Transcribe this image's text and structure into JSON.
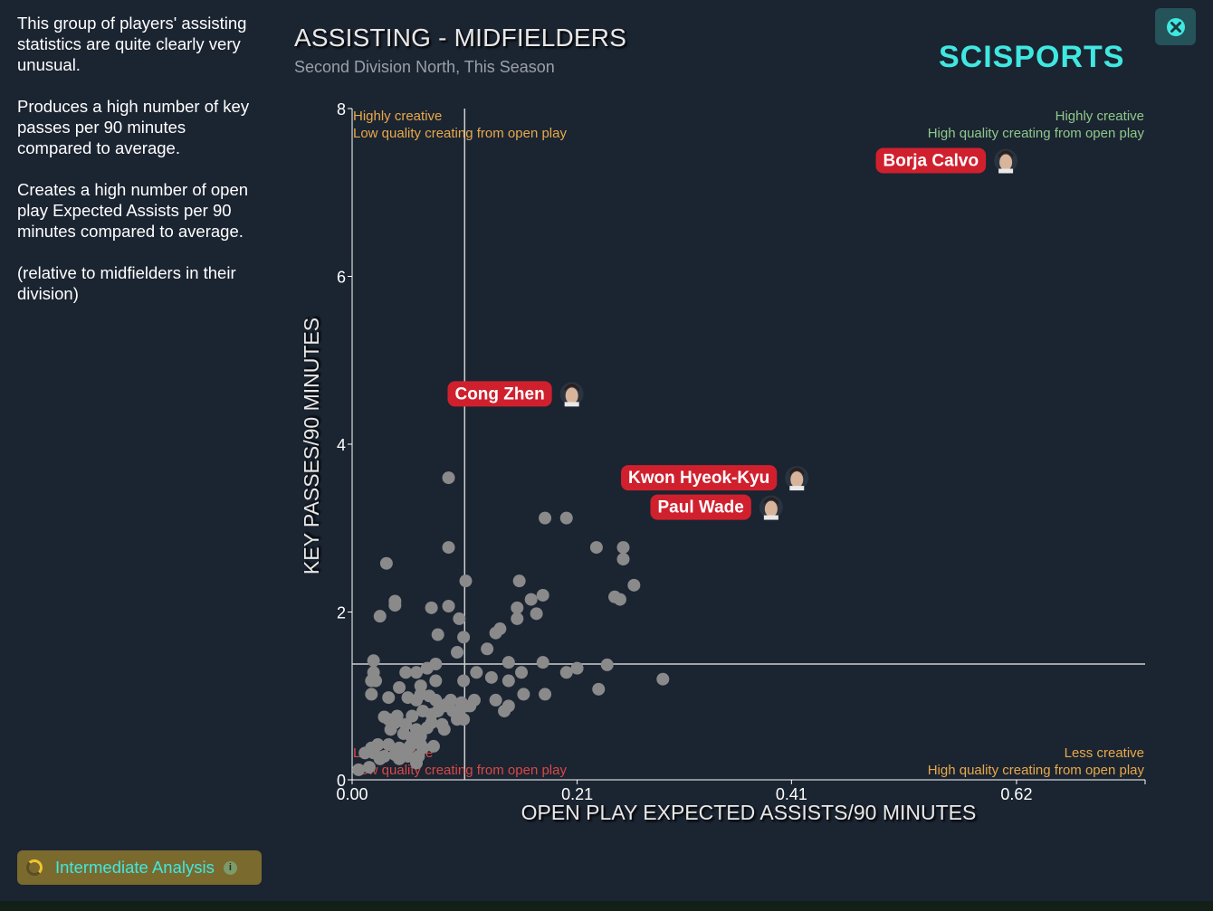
{
  "sidebar": {
    "paragraphs": [
      "This group of players' assisting statistics are quite clearly very unusual.",
      "Produces a high number of key passes per 90 minutes compared to average.",
      "Creates a high number of open play Expected Assists per 90 minutes compared to average.",
      "(relative to midfielders in their division)"
    ],
    "analysis_button": "Intermediate Analysis"
  },
  "header": {
    "brand": "SCISPORTS",
    "close_icon": "close-icon"
  },
  "colors": {
    "background": "#1b2431",
    "accent": "#3fe8e0",
    "highlight_label": "#d0202e",
    "point": "#8a8a8a",
    "quadrant_green": "#8fc98a",
    "quadrant_orange": "#e8a94a",
    "quadrant_red": "#d94848"
  },
  "chart_data": {
    "type": "scatter",
    "title": "ASSISTING - MIDFIELDERS",
    "subtitle": "Second Division North, This Season",
    "xlabel": "OPEN PLAY EXPECTED ASSISTS/90 MINUTES",
    "ylabel": "KEY PASSES/90 MINUTES",
    "xlim": [
      0,
      0.74
    ],
    "ylim": [
      0,
      8
    ],
    "xticks": [
      0.0,
      0.21,
      0.41,
      0.62
    ],
    "xtick_labels": [
      "0.00",
      "0.21",
      "0.41",
      "0.62"
    ],
    "yticks": [
      0,
      2,
      4,
      6,
      8
    ],
    "reference_lines": {
      "x": 0.105,
      "y": 1.38
    },
    "quadrant_labels": {
      "top_left": [
        "Highly creative",
        "Low quality creating from open play"
      ],
      "top_right": [
        "Highly creative",
        "High quality creating from open play"
      ],
      "bottom_left": [
        "Less creative",
        "Low quality creating from open play"
      ],
      "bottom_right": [
        "Less creative",
        "High quality creating from open play"
      ]
    },
    "highlighted": [
      {
        "name": "Borja Calvo",
        "x": 0.61,
        "y": 7.38
      },
      {
        "name": "Cong Zhen",
        "x": 0.205,
        "y": 4.6
      },
      {
        "name": "Kwon Hyeok-Kyu",
        "x": 0.415,
        "y": 3.6
      },
      {
        "name": "Paul Wade",
        "x": 0.391,
        "y": 3.25
      }
    ],
    "points": [
      [
        0.09,
        3.6
      ],
      [
        0.2,
        3.12
      ],
      [
        0.18,
        3.12
      ],
      [
        0.228,
        2.77
      ],
      [
        0.253,
        2.77
      ],
      [
        0.253,
        2.63
      ],
      [
        0.09,
        2.77
      ],
      [
        0.032,
        2.58
      ],
      [
        0.106,
        2.37
      ],
      [
        0.156,
        2.37
      ],
      [
        0.263,
        2.32
      ],
      [
        0.04,
        2.13
      ],
      [
        0.04,
        2.08
      ],
      [
        0.074,
        2.05
      ],
      [
        0.09,
        2.07
      ],
      [
        0.178,
        2.2
      ],
      [
        0.167,
        2.15
      ],
      [
        0.245,
        2.18
      ],
      [
        0.25,
        2.15
      ],
      [
        0.154,
        2.05
      ],
      [
        0.172,
        1.98
      ],
      [
        0.026,
        1.95
      ],
      [
        0.1,
        1.92
      ],
      [
        0.154,
        1.92
      ],
      [
        0.134,
        1.75
      ],
      [
        0.138,
        1.8
      ],
      [
        0.08,
        1.73
      ],
      [
        0.104,
        1.7
      ],
      [
        0.126,
        1.56
      ],
      [
        0.098,
        1.52
      ],
      [
        0.02,
        1.42
      ],
      [
        0.146,
        1.4
      ],
      [
        0.178,
        1.4
      ],
      [
        0.238,
        1.37
      ],
      [
        0.2,
        1.28
      ],
      [
        0.21,
        1.33
      ],
      [
        0.078,
        1.38
      ],
      [
        0.07,
        1.33
      ],
      [
        0.06,
        1.28
      ],
      [
        0.05,
        1.28
      ],
      [
        0.02,
        1.28
      ],
      [
        0.022,
        1.18
      ],
      [
        0.116,
        1.28
      ],
      [
        0.13,
        1.22
      ],
      [
        0.146,
        1.18
      ],
      [
        0.158,
        1.28
      ],
      [
        0.104,
        1.18
      ],
      [
        0.078,
        1.18
      ],
      [
        0.064,
        1.12
      ],
      [
        0.044,
        1.1
      ],
      [
        0.018,
        1.18
      ],
      [
        0.29,
        1.2
      ],
      [
        0.23,
        1.08
      ],
      [
        0.16,
        1.02
      ],
      [
        0.18,
        1.02
      ],
      [
        0.034,
        0.98
      ],
      [
        0.018,
        1.02
      ],
      [
        0.052,
        0.98
      ],
      [
        0.06,
        0.95
      ],
      [
        0.064,
        1.02
      ],
      [
        0.072,
        1.0
      ],
      [
        0.078,
        0.95
      ],
      [
        0.088,
        0.9
      ],
      [
        0.092,
        0.95
      ],
      [
        0.102,
        0.92
      ],
      [
        0.106,
        0.88
      ],
      [
        0.134,
        0.95
      ],
      [
        0.146,
        0.88
      ],
      [
        0.142,
        0.82
      ],
      [
        0.1,
        0.82
      ],
      [
        0.094,
        0.82
      ],
      [
        0.086,
        0.88
      ],
      [
        0.08,
        0.82
      ],
      [
        0.074,
        0.78
      ],
      [
        0.066,
        0.82
      ],
      [
        0.056,
        0.76
      ],
      [
        0.042,
        0.76
      ],
      [
        0.034,
        0.72
      ],
      [
        0.03,
        0.75
      ],
      [
        0.04,
        0.68
      ],
      [
        0.05,
        0.66
      ],
      [
        0.06,
        0.6
      ],
      [
        0.07,
        0.62
      ],
      [
        0.074,
        0.68
      ],
      [
        0.084,
        0.66
      ],
      [
        0.098,
        0.72
      ],
      [
        0.104,
        0.72
      ],
      [
        0.036,
        0.6
      ],
      [
        0.048,
        0.55
      ],
      [
        0.056,
        0.5
      ],
      [
        0.064,
        0.52
      ],
      [
        0.086,
        0.6
      ],
      [
        0.024,
        0.42
      ],
      [
        0.034,
        0.42
      ],
      [
        0.044,
        0.38
      ],
      [
        0.054,
        0.4
      ],
      [
        0.064,
        0.42
      ],
      [
        0.076,
        0.4
      ],
      [
        0.018,
        0.38
      ],
      [
        0.012,
        0.32
      ],
      [
        0.02,
        0.32
      ],
      [
        0.03,
        0.28
      ],
      [
        0.04,
        0.3
      ],
      [
        0.052,
        0.28
      ],
      [
        0.062,
        0.28
      ],
      [
        0.06,
        0.2
      ],
      [
        0.016,
        0.15
      ],
      [
        0.006,
        0.12
      ],
      [
        0.026,
        0.25
      ],
      [
        0.044,
        0.25
      ],
      [
        0.066,
        0.38
      ],
      [
        0.114,
        0.95
      ],
      [
        0.11,
        0.88
      ]
    ]
  }
}
